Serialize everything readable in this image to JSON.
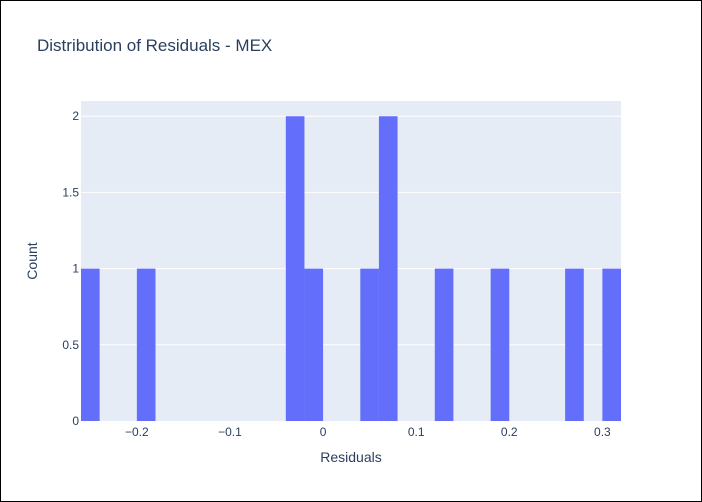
{
  "chart_data": {
    "type": "bar",
    "title": "Distribution of Residuals - MEX",
    "xlabel": "Residuals",
    "ylabel": "Count",
    "xlim": [
      -0.26,
      0.32
    ],
    "ylim": [
      0,
      2.1
    ],
    "bin_width": 0.02,
    "x_ticks": [
      -0.2,
      -0.1,
      0,
      0.1,
      0.2,
      0.3
    ],
    "x_tick_labels": [
      "−0.2",
      "−0.1",
      "0",
      "0.1",
      "0.2",
      "0.3"
    ],
    "y_ticks": [
      0,
      0.5,
      1,
      1.5,
      2
    ],
    "y_tick_labels": [
      "0",
      "0.5",
      "1",
      "1.5",
      "2"
    ],
    "bins": [
      {
        "x0": -0.26,
        "x1": -0.24,
        "count": 1
      },
      {
        "x0": -0.2,
        "x1": -0.18,
        "count": 1
      },
      {
        "x0": -0.04,
        "x1": -0.02,
        "count": 2
      },
      {
        "x0": -0.02,
        "x1": 0.0,
        "count": 1
      },
      {
        "x0": 0.04,
        "x1": 0.06,
        "count": 1
      },
      {
        "x0": 0.06,
        "x1": 0.08,
        "count": 2
      },
      {
        "x0": 0.12,
        "x1": 0.14,
        "count": 1
      },
      {
        "x0": 0.18,
        "x1": 0.2,
        "count": 1
      },
      {
        "x0": 0.26,
        "x1": 0.28,
        "count": 1
      },
      {
        "x0": 0.3,
        "x1": 0.32,
        "count": 1
      }
    ],
    "grid": true,
    "legend": "none",
    "colors": {
      "bar": "#636efa",
      "plot_bg": "#e5ecf6",
      "grid": "#ffffff",
      "text": "#2a3f5f"
    }
  }
}
